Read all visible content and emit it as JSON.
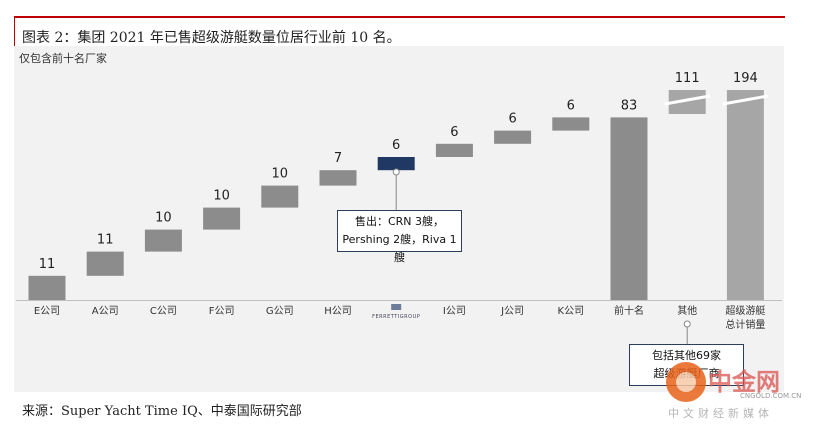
{
  "caption": "图表 2：集团 2021 年已售超级游艇数量位居行业前 10 名。",
  "note": "仅包含前十名厂家",
  "callouts": {
    "crn_line1": "售出：CRN 3艘，",
    "crn_line2": "Pershing 2艘，Riva 1艘",
    "other_line1": "包括其他69家",
    "other_line2": "超级游艇厂商"
  },
  "source": "来源：Super Yacht Time IQ、中泰国际研究部",
  "watermark": {
    "name": "中金网",
    "url": "CNGOLD.COM.CN",
    "tagline": "中文财经新媒体"
  },
  "colors": {
    "panel": "#f2f2f2",
    "bar": "#8c8c8c",
    "highlight": "#1f3864",
    "total": "#a6a6a6",
    "frame": "#c00000"
  },
  "chart_data": {
    "type": "bar",
    "subtype": "waterfall",
    "categories": [
      "E公司",
      "A公司",
      "C公司",
      "F公司",
      "G公司",
      "H公司",
      "FERRETTIGROUP",
      "I公司",
      "J公司",
      "K公司",
      "前十名",
      "其他",
      "超级游艇总计销量"
    ],
    "values": [
      11,
      11,
      10,
      10,
      10,
      7,
      6,
      6,
      6,
      6,
      83,
      111,
      194
    ],
    "data_labels": [
      "11",
      "11",
      "10",
      "10",
      "10",
      "7",
      "6",
      "6",
      "6",
      "6",
      "83",
      "111",
      "194"
    ],
    "highlight": "FERRETTIGROUP",
    "axis_break": [
      "其他",
      "超级游艇总计销量"
    ],
    "grid": false,
    "legend": "none"
  }
}
